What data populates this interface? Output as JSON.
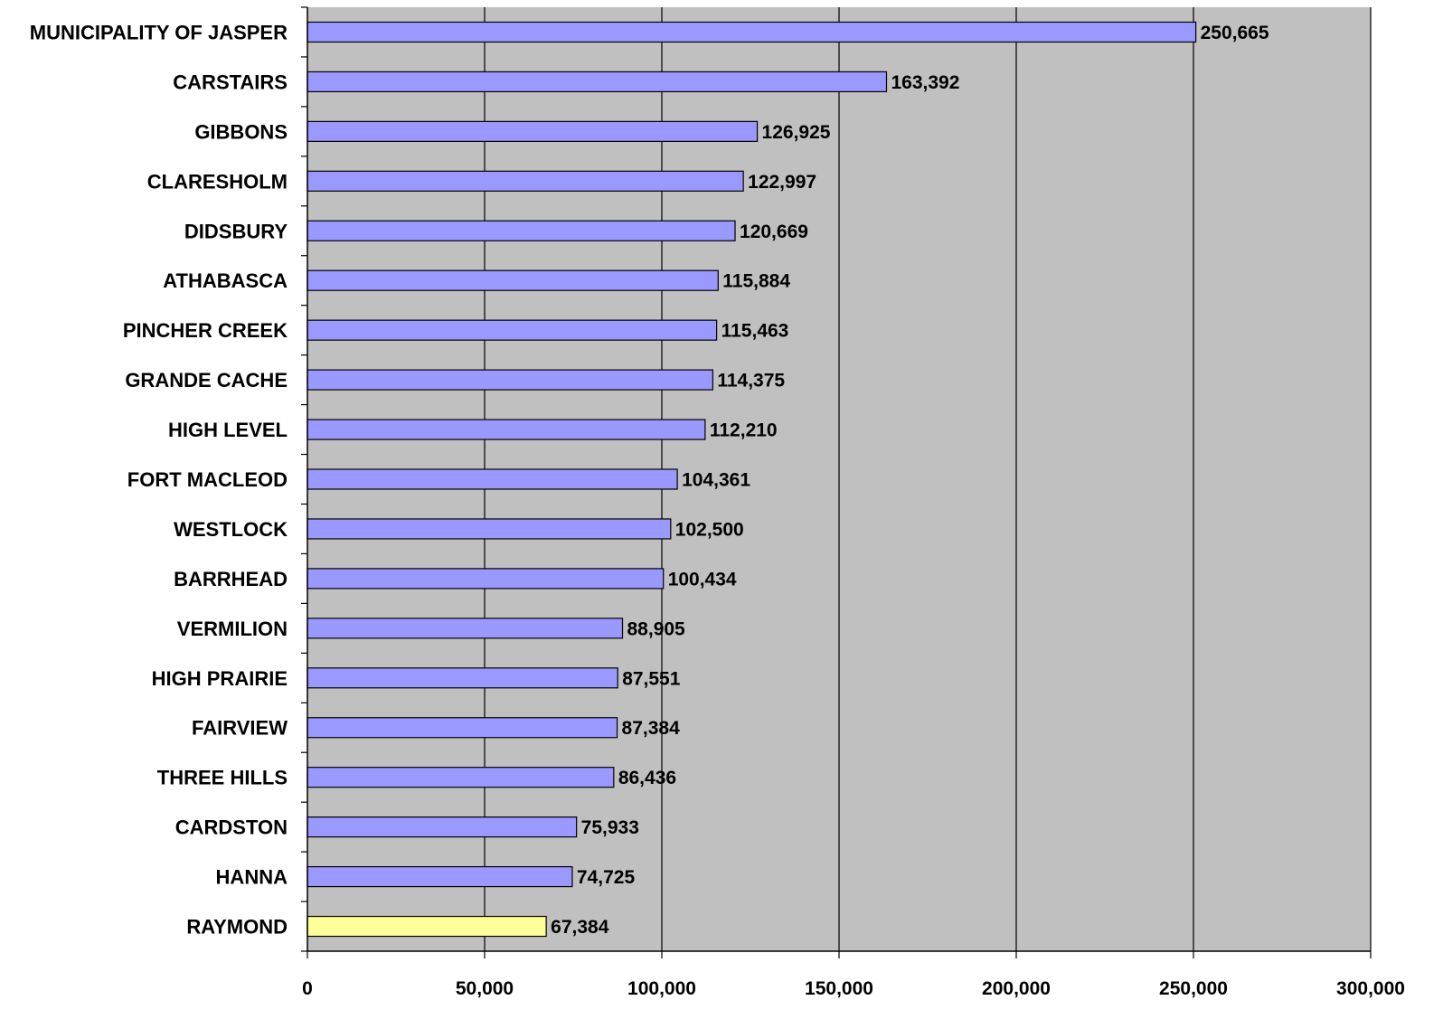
{
  "chart_data": {
    "type": "bar",
    "orientation": "horizontal",
    "title": "",
    "xlabel": "",
    "ylabel": "",
    "xlim": [
      0,
      300000
    ],
    "x_ticks": [
      0,
      50000,
      100000,
      150000,
      200000,
      250000,
      300000
    ],
    "x_tick_labels": [
      "0",
      "50,000",
      "100,000",
      "150,000",
      "200,000",
      "250,000",
      "300,000"
    ],
    "grid": "vertical",
    "plot_background": "#c0c0c0",
    "bar_color": "#9999ff",
    "highlight_color": "#ffff99",
    "categories": [
      "MUNICIPALITY OF JASPER",
      "CARSTAIRS",
      "GIBBONS",
      "CLARESHOLM",
      "DIDSBURY",
      "ATHABASCA",
      "PINCHER CREEK",
      "GRANDE CACHE",
      "HIGH LEVEL",
      "FORT MACLEOD",
      "WESTLOCK",
      "BARRHEAD",
      "VERMILION",
      "HIGH PRAIRIE",
      "FAIRVIEW",
      "THREE HILLS",
      "CARDSTON",
      "HANNA",
      "RAYMOND"
    ],
    "values": [
      250665,
      163392,
      126925,
      122997,
      120669,
      115884,
      115463,
      114375,
      112210,
      104361,
      102500,
      100434,
      88905,
      87551,
      87384,
      86436,
      75933,
      74725,
      67384
    ],
    "value_labels": [
      "250,665",
      "163,392",
      "126,925",
      "122,997",
      "120,669",
      "115,884",
      "115,463",
      "114,375",
      "112,210",
      "104,361",
      "102,500",
      "100,434",
      "88,905",
      "87,551",
      "87,384",
      "86,436",
      "75,933",
      "74,725",
      "67,384"
    ],
    "highlighted_category": "RAYMOND"
  }
}
